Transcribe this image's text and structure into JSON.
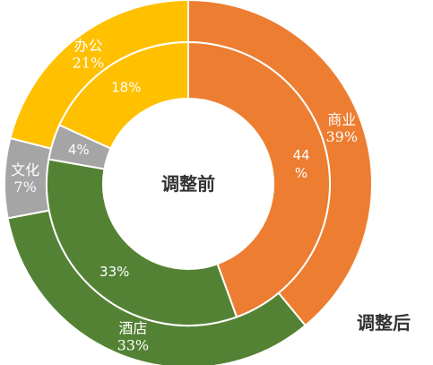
{
  "chart_data": {
    "type": "pie",
    "variant": "nested-donut",
    "center_label": "调整前",
    "outer_label": "调整后",
    "colors": {
      "商业": "#ED7D31",
      "酒店": "#548235",
      "文化": "#A5A5A5",
      "办公": "#FFC000"
    },
    "series": [
      {
        "name": "调整前",
        "ring": "inner",
        "slices": [
          {
            "category": "商业",
            "value": 44,
            "label": "44\n%"
          },
          {
            "category": "酒店",
            "value": 33,
            "label": "33%"
          },
          {
            "category": "文化",
            "value": 4,
            "label": "4%"
          },
          {
            "category": "办公",
            "value": 18,
            "label": "18%"
          }
        ]
      },
      {
        "name": "调整后",
        "ring": "outer",
        "slices": [
          {
            "category": "商业",
            "value": 39,
            "label": "商业\n39%"
          },
          {
            "category": "酒店",
            "value": 33,
            "label": "酒店\n33%"
          },
          {
            "category": "文化",
            "value": 7,
            "label": "文化\n7%"
          },
          {
            "category": "办公",
            "value": 21,
            "label": "办公\n21%"
          }
        ]
      }
    ]
  }
}
